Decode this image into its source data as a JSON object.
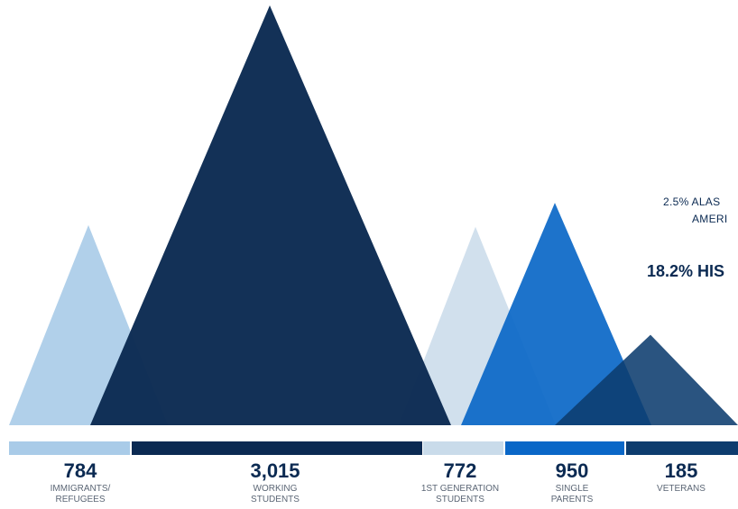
{
  "chart_data": {
    "type": "area",
    "title": "",
    "categories": [
      {
        "value": "784",
        "label_lines": [
          "IMMIGRANTS/",
          "REFUGEES"
        ],
        "color": "#a9cbe8",
        "opacity": 0.9
      },
      {
        "value": "3,015",
        "label_lines": [
          "WORKING",
          "STUDENTS"
        ],
        "color": "#0b2a52",
        "opacity": 0.97
      },
      {
        "value": "772",
        "label_lines": [
          "1ST GENERATION",
          "STUDENTS"
        ],
        "color": "#c9dbea",
        "opacity": 0.85
      },
      {
        "value": "950",
        "label_lines": [
          "SINGLE",
          "PARENTS"
        ],
        "color": "#0a67c7",
        "opacity": 0.92
      },
      {
        "value": "185",
        "label_lines": [
          "VETERANS"
        ],
        "color": "#0d3c6e",
        "opacity": 0.88
      }
    ],
    "values": [
      784,
      3015,
      772,
      950,
      185
    ]
  },
  "side_text": {
    "line1": "2.5% ALAS",
    "line2": "AMERI",
    "line3": "18.2% HIS"
  }
}
